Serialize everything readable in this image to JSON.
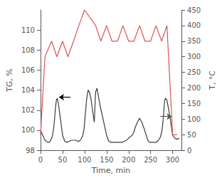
{
  "chart_data": {
    "type": "line",
    "xlabel": "Time, min",
    "ylabel": "TG, %",
    "y2label": "T, °C",
    "xlim": [
      0,
      320
    ],
    "xticks": [
      0,
      50,
      100,
      150,
      200,
      250,
      300
    ],
    "ylim": [
      98,
      112
    ],
    "yticks": [
      98,
      100,
      102,
      104,
      106,
      108,
      110
    ],
    "y2lim": [
      0,
      450
    ],
    "y2ticks": [
      0,
      50,
      100,
      150,
      200,
      250,
      300,
      350,
      400,
      450
    ],
    "grid": false,
    "series": [
      {
        "color": "#3a3a3a",
        "axis": "y",
        "x": [
          0,
          3,
          7,
          10,
          13,
          17,
          20,
          23,
          26,
          28,
          30,
          32,
          34,
          36,
          38,
          41,
          45,
          50,
          55,
          60,
          65,
          70,
          75,
          80,
          85,
          88,
          90,
          93,
          96,
          99,
          102,
          105,
          108,
          111,
          115,
          118,
          122,
          125,
          128,
          131,
          135,
          140,
          145,
          150,
          155,
          160,
          165,
          170,
          175,
          180,
          185,
          190,
          195,
          198,
          200,
          202,
          205,
          208,
          212,
          215,
          220,
          225,
          230,
          235,
          240,
          243,
          245,
          248,
          252,
          255,
          258,
          262,
          265,
          268,
          272,
          275,
          278,
          280,
          282,
          284,
          287,
          290,
          295,
          300,
          305,
          310,
          315
        ],
        "values": [
          100.0,
          99.7,
          99.3,
          99.0,
          98.9,
          98.8,
          98.8,
          99.0,
          99.3,
          99.7,
          100.3,
          101.2,
          102.3,
          103.0,
          103.2,
          102.5,
          101.2,
          99.5,
          98.9,
          98.8,
          98.9,
          99.0,
          99.0,
          99.0,
          98.9,
          98.9,
          99.0,
          99.2,
          99.5,
          100.2,
          101.8,
          103.2,
          104.0,
          103.8,
          103.0,
          102.0,
          100.8,
          103.8,
          104.2,
          103.5,
          102.5,
          101.5,
          100.5,
          99.5,
          98.9,
          98.8,
          98.8,
          98.8,
          98.8,
          98.8,
          98.8,
          98.9,
          99.0,
          99.1,
          99.2,
          99.3,
          99.4,
          99.5,
          99.8,
          100.3,
          100.8,
          101.2,
          100.8,
          100.2,
          99.5,
          99.1,
          98.9,
          98.8,
          98.8,
          98.8,
          98.8,
          98.8,
          98.9,
          99.0,
          99.3,
          99.8,
          100.8,
          102.0,
          103.0,
          103.2,
          103.0,
          102.3,
          101.0,
          99.5,
          99.2,
          99.1,
          99.2
        ]
      },
      {
        "color": "#e05050",
        "axis": "y2",
        "x": [
          0,
          0,
          10,
          10,
          25,
          25,
          37,
          37,
          50,
          50,
          62,
          62,
          75,
          75,
          87,
          87,
          100,
          100,
          125,
          125,
          137,
          137,
          150,
          150,
          162,
          162,
          175,
          175,
          187,
          187,
          200,
          200,
          212,
          212,
          225,
          225,
          237,
          237,
          250,
          250,
          262,
          262,
          275,
          275,
          287,
          287,
          300,
          300,
          310,
          310
        ],
        "values": [
          50,
          50,
          300,
          300,
          350,
          350,
          300,
          300,
          350,
          350,
          300,
          300,
          350,
          350,
          400,
          400,
          450,
          450,
          400,
          400,
          350,
          350,
          400,
          400,
          350,
          350,
          350,
          350,
          400,
          400,
          350,
          350,
          350,
          350,
          400,
          400,
          350,
          350,
          350,
          350,
          400,
          400,
          350,
          350,
          400,
          400,
          50,
          50,
          50,
          50
        ]
      }
    ],
    "arrows": [
      {
        "x": [
          68,
          42
        ],
        "y": [
          103.3,
          103.3
        ],
        "color": "#000000",
        "axis": "y"
      },
      {
        "x": [
          272,
          298
        ],
        "y": [
          108.2,
          108.2
        ],
        "color": "#555555",
        "axis": "y2"
      }
    ]
  }
}
